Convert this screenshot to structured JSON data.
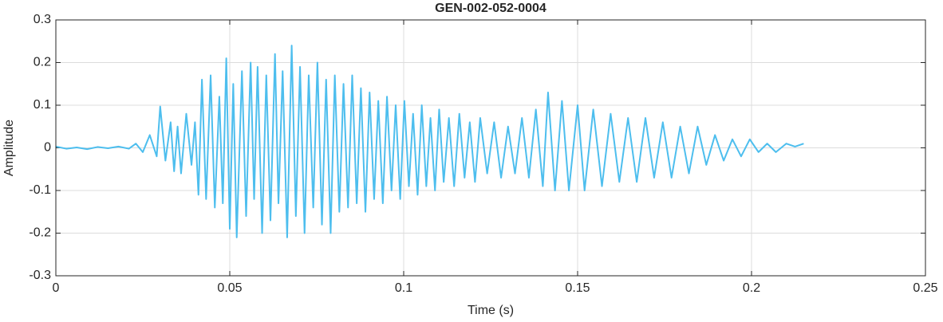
{
  "chart_data": {
    "type": "line",
    "title": "GEN-002-052-0004",
    "xlabel": "Time (s)",
    "ylabel": "Amplitude",
    "xlim": [
      0,
      0.25
    ],
    "xticks": [
      0,
      0.05,
      0.1,
      0.15,
      0.2,
      0.25
    ],
    "ylim": [
      -0.3,
      0.3
    ],
    "yticks": [
      -0.3,
      -0.2,
      -0.1,
      0,
      0.1,
      0.2,
      0.3
    ],
    "grid": true,
    "series": [
      {
        "color": "#4dbeee",
        "x": [
          0,
          0.003,
          0.006,
          0.009,
          0.012,
          0.015,
          0.018,
          0.021,
          0.023,
          0.025,
          0.027,
          0.029,
          0.03,
          0.0315,
          0.033,
          0.034,
          0.035,
          0.036,
          0.0375,
          0.039,
          0.04,
          0.041,
          0.042,
          0.0432,
          0.0445,
          0.0457,
          0.047,
          0.048,
          0.049,
          0.05,
          0.051,
          0.052,
          0.0535,
          0.0547,
          0.056,
          0.057,
          0.058,
          0.0593,
          0.0605,
          0.0617,
          0.063,
          0.064,
          0.0652,
          0.0665,
          0.0678,
          0.069,
          0.0702,
          0.0715,
          0.0727,
          0.074,
          0.0752,
          0.0765,
          0.0777,
          0.079,
          0.0802,
          0.0815,
          0.0827,
          0.084,
          0.0852,
          0.0865,
          0.0877,
          0.089,
          0.0902,
          0.0915,
          0.0927,
          0.094,
          0.0952,
          0.0965,
          0.0977,
          0.099,
          0.1002,
          0.1015,
          0.1027,
          0.104,
          0.1052,
          0.1065,
          0.1077,
          0.109,
          0.1102,
          0.1115,
          0.113,
          0.1145,
          0.116,
          0.1175,
          0.119,
          0.1205,
          0.122,
          0.124,
          0.126,
          0.128,
          0.13,
          0.132,
          0.134,
          0.136,
          0.138,
          0.14,
          0.1415,
          0.1435,
          0.1455,
          0.1475,
          0.15,
          0.152,
          0.1545,
          0.157,
          0.1595,
          0.162,
          0.1645,
          0.167,
          0.1695,
          0.172,
          0.1745,
          0.177,
          0.1795,
          0.182,
          0.1845,
          0.187,
          0.1895,
          0.192,
          0.1945,
          0.197,
          0.1995,
          0.202,
          0.2045,
          0.207,
          0.21,
          0.2125,
          0.215
        ],
        "values": [
          0.003,
          -0.002,
          0.001,
          -0.003,
          0.002,
          -0.001,
          0.003,
          -0.002,
          0.01,
          -0.01,
          0.03,
          -0.02,
          0.097,
          -0.03,
          0.06,
          -0.055,
          0.05,
          -0.06,
          0.08,
          -0.04,
          0.06,
          -0.11,
          0.16,
          -0.12,
          0.17,
          -0.14,
          0.12,
          -0.13,
          0.21,
          -0.19,
          0.15,
          -0.21,
          0.18,
          -0.16,
          0.2,
          -0.12,
          0.19,
          -0.2,
          0.17,
          -0.17,
          0.22,
          -0.13,
          0.18,
          -0.21,
          0.24,
          -0.16,
          0.19,
          -0.2,
          0.17,
          -0.14,
          0.2,
          -0.18,
          0.16,
          -0.2,
          0.17,
          -0.15,
          0.15,
          -0.14,
          0.17,
          -0.13,
          0.14,
          -0.15,
          0.13,
          -0.12,
          0.11,
          -0.13,
          0.12,
          -0.1,
          0.1,
          -0.12,
          0.11,
          -0.09,
          0.08,
          -0.11,
          0.1,
          -0.09,
          0.07,
          -0.1,
          0.09,
          -0.08,
          0.07,
          -0.09,
          0.08,
          -0.07,
          0.06,
          -0.08,
          0.07,
          -0.06,
          0.06,
          -0.07,
          0.05,
          -0.06,
          0.07,
          -0.07,
          0.09,
          -0.09,
          0.13,
          -0.1,
          0.11,
          -0.1,
          0.1,
          -0.1,
          0.09,
          -0.09,
          0.08,
          -0.08,
          0.07,
          -0.08,
          0.07,
          -0.07,
          0.06,
          -0.07,
          0.05,
          -0.06,
          0.05,
          -0.04,
          0.03,
          -0.03,
          0.02,
          -0.02,
          0.02,
          -0.01,
          0.01,
          -0.01,
          0.01,
          0.003,
          0.01
        ]
      }
    ]
  }
}
